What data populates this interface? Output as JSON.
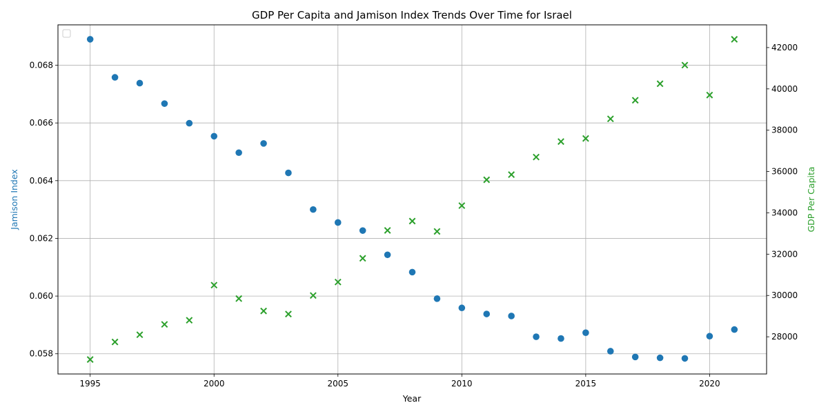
{
  "chart_data": {
    "type": "scatter",
    "title": "GDP Per Capita and Jamison Index Trends Over Time for Israel",
    "xlabel": "Year",
    "ylabel_left": "Jamison Index",
    "ylabel_right": "GDP Per Capita",
    "xlim": [
      1993.7,
      2022.3
    ],
    "ylim_left": [
      0.0573,
      0.0694
    ],
    "ylim_right": [
      26200,
      43100
    ],
    "x_ticks": [
      1995,
      2000,
      2005,
      2010,
      2015,
      2020
    ],
    "y_left_ticks": [
      0.058,
      0.06,
      0.062,
      0.064,
      0.066,
      0.068
    ],
    "y_left_tick_labels": [
      "0.058",
      "0.060",
      "0.062",
      "0.064",
      "0.066",
      "0.068"
    ],
    "y_right_ticks": [
      28000,
      30000,
      32000,
      34000,
      36000,
      38000,
      40000,
      42000
    ],
    "grid": true,
    "legend": "top-left (empty)",
    "colors": {
      "jamison": "#1f77b4",
      "gdp": "#2ca02c"
    },
    "series": [
      {
        "axis": "left",
        "marker": "circle",
        "x": [
          1995,
          1996,
          1997,
          1998,
          1999,
          2000,
          2001,
          2002,
          2003,
          2004,
          2005,
          2006,
          2007,
          2008,
          2009,
          2010,
          2011,
          2012,
          2013,
          2014,
          2015,
          2016,
          2017,
          2018,
          2019,
          2020,
          2021
        ],
        "y": [
          0.0689,
          0.06758,
          0.06738,
          0.06667,
          0.06599,
          0.06554,
          0.06497,
          0.06529,
          0.06427,
          0.063,
          0.06255,
          0.06227,
          0.06143,
          0.06083,
          0.05991,
          0.05959,
          0.05938,
          0.05931,
          0.05859,
          0.05853,
          0.05873,
          0.05809,
          0.05789,
          0.05786,
          0.05784,
          0.05861,
          0.05884
        ]
      },
      {
        "axis": "right",
        "marker": "x",
        "x": [
          1995,
          1996,
          1997,
          1998,
          1999,
          2000,
          2001,
          2002,
          2003,
          2004,
          2005,
          2006,
          2007,
          2008,
          2009,
          2010,
          2011,
          2012,
          2013,
          2014,
          2015,
          2016,
          2017,
          2018,
          2019,
          2020,
          2021
        ],
        "y": [
          26900,
          27750,
          28100,
          28600,
          28800,
          30500,
          29850,
          29250,
          29100,
          30000,
          30650,
          31800,
          33150,
          33600,
          33100,
          34350,
          35600,
          35850,
          36700,
          37450,
          37600,
          38550,
          39450,
          40250,
          41150,
          39700,
          42400
        ]
      }
    ]
  }
}
